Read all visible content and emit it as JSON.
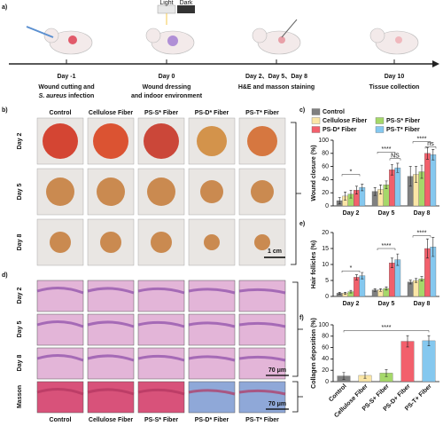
{
  "figure": {
    "panels": [
      "a)",
      "b)",
      "c)",
      "d)",
      "e)",
      "f)"
    ],
    "light": "Light",
    "dark": "Dark",
    "timeline": [
      {
        "day": "Day -1",
        "caption": [
          "Wound cutting and",
          [
            "S. aureus",
            " infection"
          ]
        ]
      },
      {
        "day": "Day 0",
        "caption": [
          "Wound dressing",
          "and indoor environment"
        ]
      },
      {
        "day": "Day 2、Day 5、Day 8",
        "caption": [
          "H&E and masson staining"
        ]
      },
      {
        "day": "Day 10",
        "caption": [
          "Tissue collection"
        ]
      }
    ],
    "photos": {
      "columns": [
        "Control",
        "Cellulose Fiber",
        "PS-S* Fiber",
        "PS-D* Fiber",
        "PS-T* Fiber"
      ],
      "rows": [
        "Day 2",
        "Day 5",
        "Day 8"
      ],
      "scale": "1 cm"
    },
    "histology": {
      "rows": [
        "Day 2",
        "Day 5",
        "Day 8",
        "Masson"
      ],
      "columns": [
        "Control",
        "Cellulose Fiber",
        "PS-S* Fiber",
        "PS-D* Fiber",
        "PS-T* Fiber"
      ],
      "scales": [
        "70 μm",
        "70 μm"
      ]
    }
  },
  "chart_data": [
    {
      "type": "bar",
      "y_label": "Wound closure (%)",
      "categories": [
        "Day 2",
        "Day 5",
        "Day 8"
      ],
      "ylim": [
        0,
        100
      ],
      "yticks": [
        0,
        20,
        40,
        60,
        80,
        100
      ],
      "legend": true,
      "series": [
        {
          "name": "Control",
          "color": "#808080",
          "values": [
            8,
            22,
            45
          ],
          "errors": [
            5,
            6,
            15
          ]
        },
        {
          "name": "Cellulose Fiber",
          "color": "#fbe6a6",
          "values": [
            15,
            25,
            48
          ],
          "errors": [
            6,
            7,
            12
          ]
        },
        {
          "name": "PS-S* Fiber",
          "color": "#a5d86a",
          "values": [
            18,
            32,
            52
          ],
          "errors": [
            6,
            6,
            10
          ]
        },
        {
          "name": "PS-D* Fiber",
          "color": "#f2606c",
          "values": [
            24,
            55,
            80
          ],
          "errors": [
            6,
            8,
            9
          ]
        },
        {
          "name": "PS-T* Fiber",
          "color": "#85c8ef",
          "values": [
            28,
            58,
            78
          ],
          "errors": [
            5,
            7,
            8
          ]
        }
      ],
      "annotations": [
        "*",
        "****",
        "NS",
        "****",
        "ns"
      ]
    },
    {
      "type": "bar",
      "y_label": "Hair follicles (%)",
      "categories": [
        "Day 2",
        "Day 5",
        "Day 8"
      ],
      "ylim": [
        0,
        20
      ],
      "yticks": [
        0,
        5,
        10,
        15,
        20
      ],
      "series": [
        {
          "name": "Control",
          "color": "#808080",
          "values": [
            1,
            2,
            4.5
          ],
          "errors": [
            0.3,
            0.4,
            0.6
          ]
        },
        {
          "name": "Cellulose Fiber",
          "color": "#fbe6a6",
          "values": [
            1,
            2,
            5
          ],
          "errors": [
            0.3,
            0.4,
            0.6
          ]
        },
        {
          "name": "PS-S* Fiber",
          "color": "#a5d86a",
          "values": [
            1.5,
            2.5,
            5.5
          ],
          "errors": [
            0.4,
            0.5,
            0.7
          ]
        },
        {
          "name": "PS-D* Fiber",
          "color": "#f2606c",
          "values": [
            6,
            10.5,
            15
          ],
          "errors": [
            0.8,
            1.5,
            3
          ]
        },
        {
          "name": "PS-T* Fiber",
          "color": "#85c8ef",
          "values": [
            6.5,
            11.5,
            15.5
          ],
          "errors": [
            1,
            1.8,
            3
          ]
        }
      ],
      "annotations": [
        "*",
        "****",
        "****"
      ]
    },
    {
      "type": "bar",
      "y_label": "Collagen deposition (%)",
      "categories": [
        "Control",
        "Cellulose Fiber",
        "PS-S+ Fiber",
        "PS-D+ Fiber",
        "PS-T+ Fiber"
      ],
      "ylim": [
        0,
        100
      ],
      "yticks": [
        0,
        20,
        40,
        60,
        80,
        100
      ],
      "values": [
        10,
        11,
        15,
        71,
        72
      ],
      "errors": [
        6,
        5,
        6,
        10,
        9
      ],
      "colors": [
        "#808080",
        "#fbe6a6",
        "#a5d86a",
        "#f2606c",
        "#85c8ef"
      ],
      "annotations": [
        "****"
      ]
    }
  ]
}
